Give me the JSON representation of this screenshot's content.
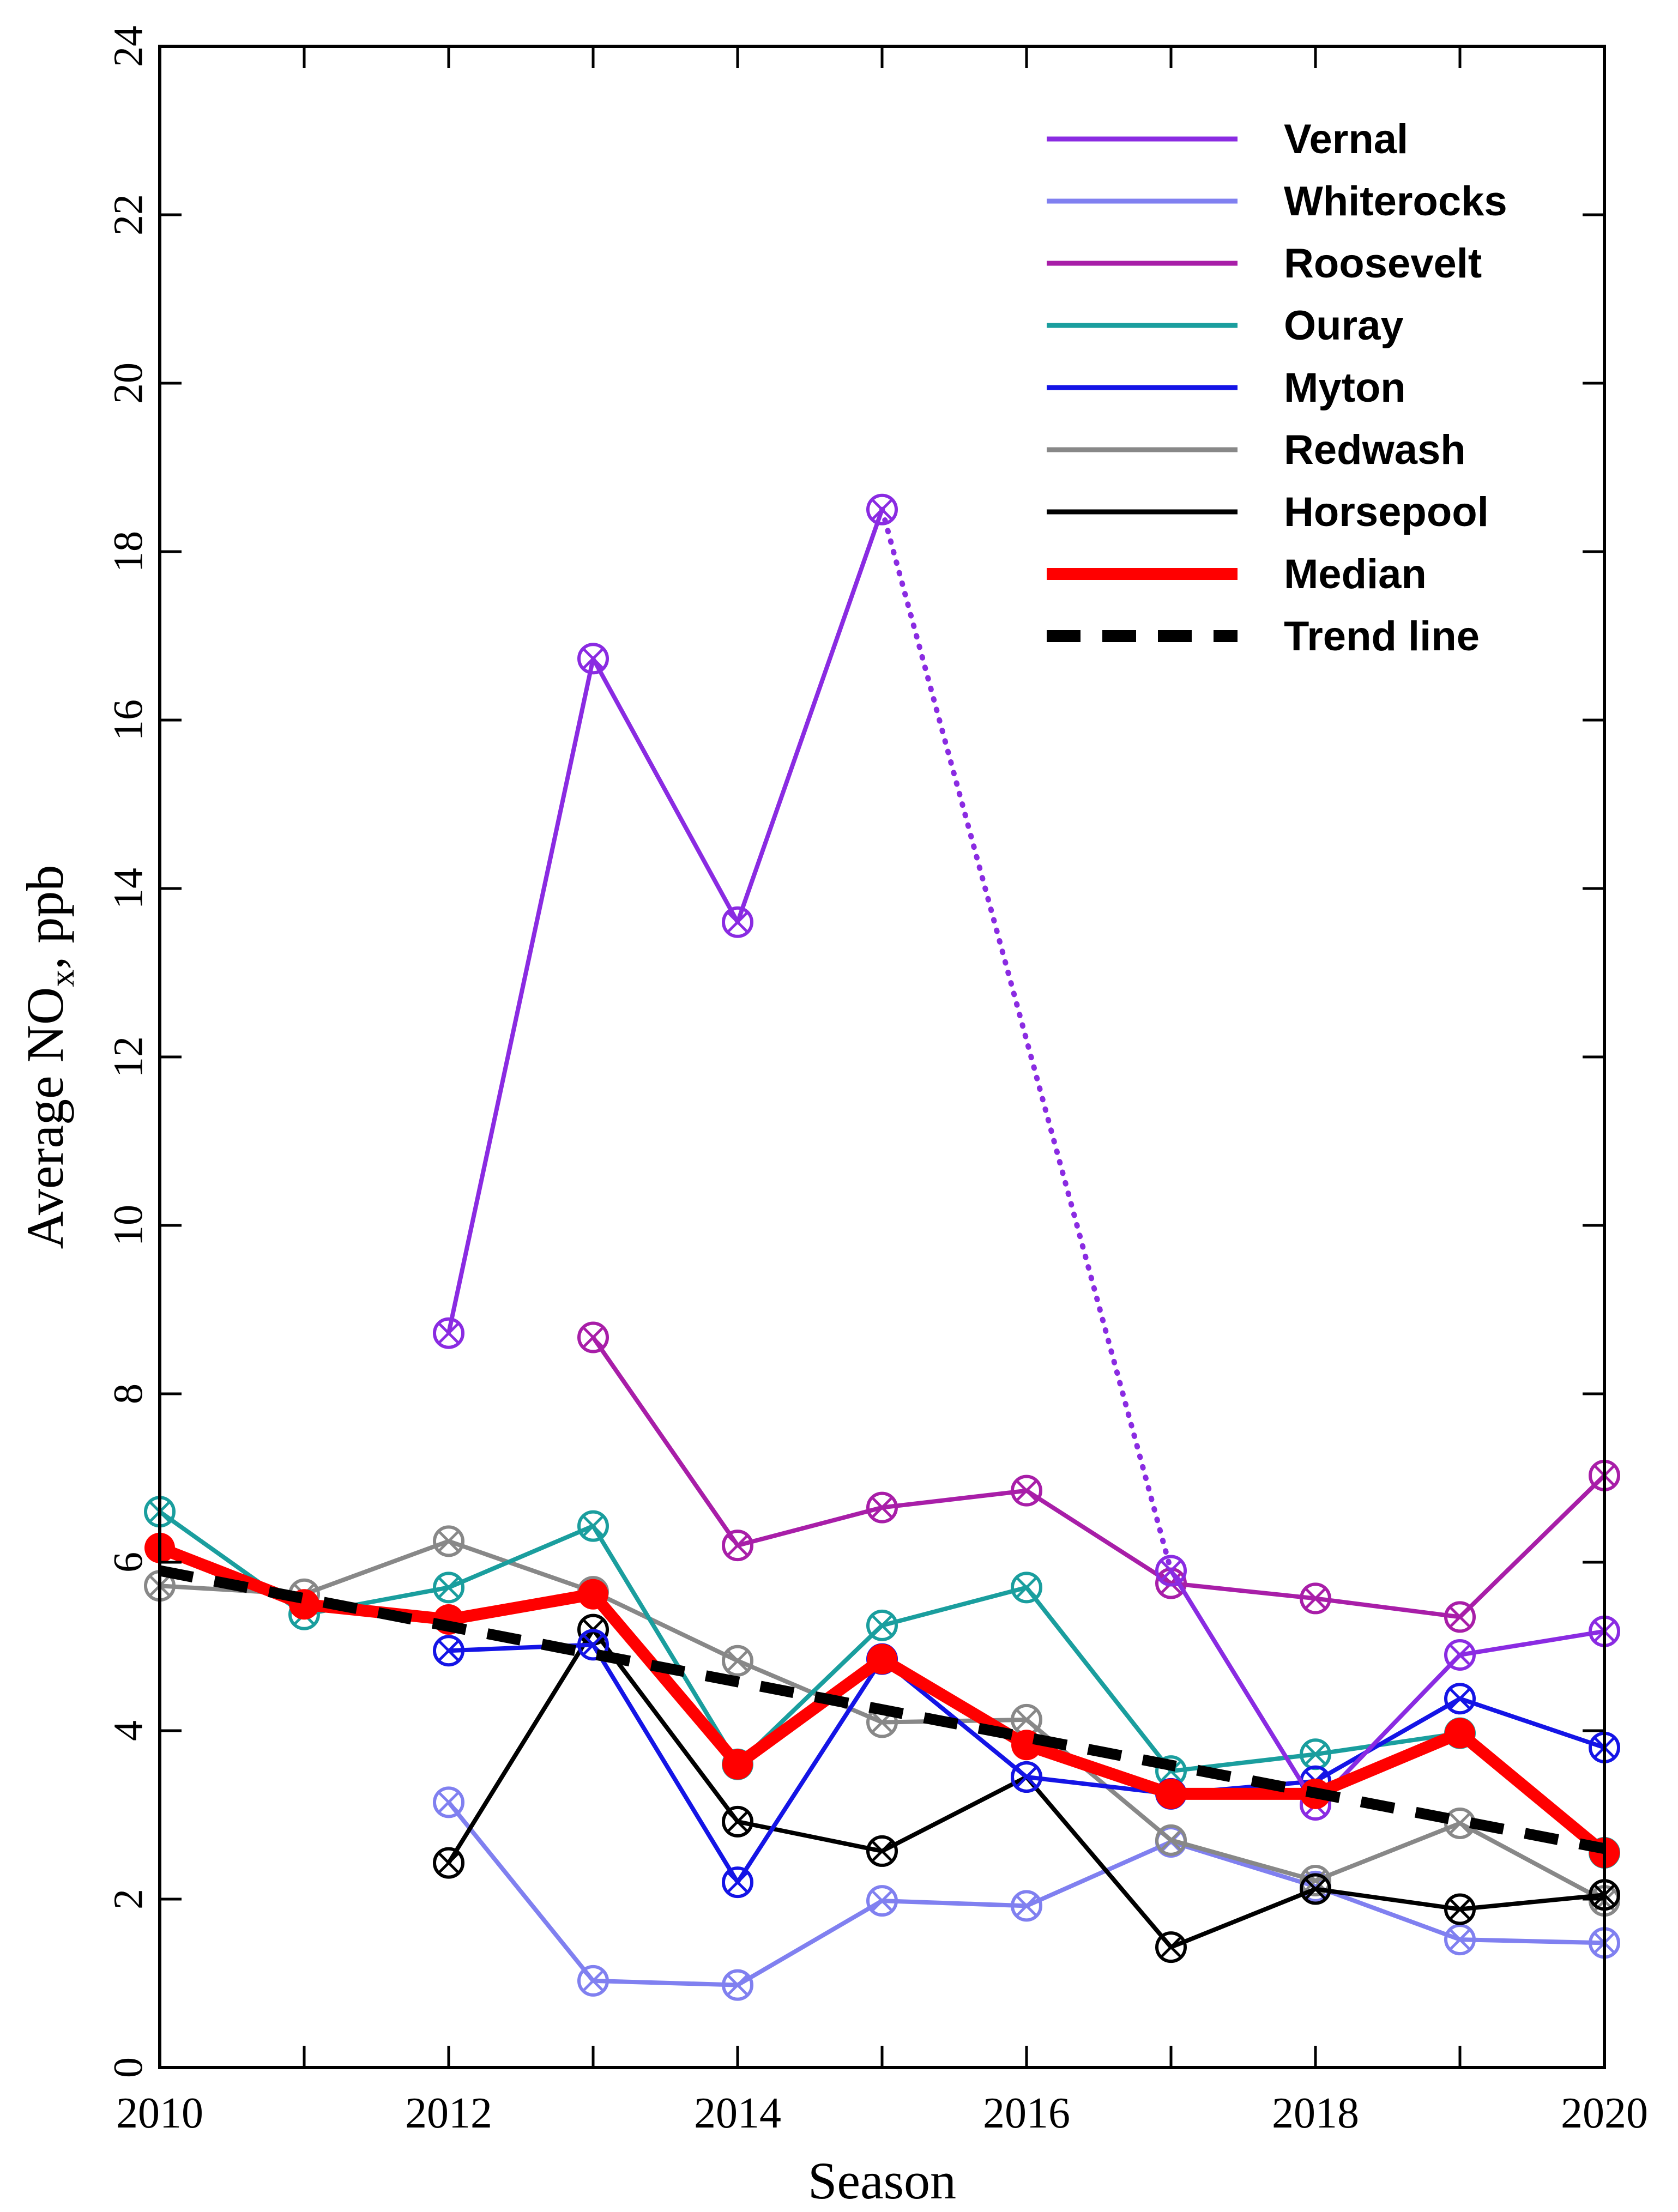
{
  "chart_data": {
    "type": "line",
    "xlabel": "Season",
    "ylabel": "Average NO",
    "ylabel_sub": "x",
    "ylabel_suffix": ", ppb",
    "xlim": [
      2010,
      2020
    ],
    "ylim": [
      0,
      24
    ],
    "x_ticks": [
      2010,
      2012,
      2014,
      2016,
      2018,
      2020
    ],
    "y_ticks": [
      0,
      2,
      4,
      6,
      8,
      10,
      12,
      14,
      16,
      18,
      20,
      22,
      24
    ],
    "legend_position": "top-right",
    "series": [
      {
        "name": "Vernal",
        "color": "#8a2be2",
        "points": [
          [
            2012,
            8.72
          ],
          [
            2013,
            16.73
          ],
          [
            2014,
            13.6
          ],
          [
            2015,
            18.5
          ],
          [
            2017,
            5.9
          ],
          [
            2018,
            3.12
          ],
          [
            2019,
            4.9
          ],
          [
            2020,
            5.18
          ]
        ],
        "dotted_segment": [
          2015,
          2017
        ]
      },
      {
        "name": "Whiterocks",
        "color": "#8080f0",
        "points": [
          [
            2012,
            3.15
          ],
          [
            2013,
            1.03
          ],
          [
            2014,
            0.98
          ],
          [
            2015,
            1.98
          ],
          [
            2016,
            1.92
          ],
          [
            2017,
            2.68
          ],
          [
            2018,
            2.15
          ],
          [
            2019,
            1.52
          ],
          [
            2020,
            1.48
          ]
        ]
      },
      {
        "name": "Roosevelt",
        "color": "#a81ea8",
        "points": [
          [
            2013,
            8.67
          ],
          [
            2014,
            6.2
          ],
          [
            2015,
            6.65
          ],
          [
            2016,
            6.85
          ],
          [
            2017,
            5.75
          ],
          [
            2018,
            5.57
          ],
          [
            2019,
            5.35
          ],
          [
            2020,
            7.03
          ]
        ]
      },
      {
        "name": "Ouray",
        "color": "#1a9e9e",
        "points": [
          [
            2010,
            6.6
          ],
          [
            2011,
            5.38
          ],
          [
            2012,
            5.7
          ],
          [
            2013,
            6.43
          ],
          [
            2014,
            3.6
          ],
          [
            2015,
            5.25
          ],
          [
            2016,
            5.7
          ],
          [
            2017,
            3.52
          ],
          [
            2018,
            3.72
          ],
          [
            2019,
            3.97
          ],
          [
            2020,
            2.55
          ]
        ]
      },
      {
        "name": "Myton",
        "color": "#1414e6",
        "points": [
          [
            2012,
            4.95
          ],
          [
            2013,
            5.02
          ],
          [
            2014,
            2.2
          ],
          [
            2015,
            4.85
          ],
          [
            2016,
            3.45
          ],
          [
            2017,
            3.25
          ],
          [
            2018,
            3.4
          ],
          [
            2019,
            4.38
          ],
          [
            2020,
            3.8
          ]
        ]
      },
      {
        "name": "Redwash",
        "color": "#888888",
        "points": [
          [
            2010,
            5.72
          ],
          [
            2011,
            5.62
          ],
          [
            2012,
            6.25
          ],
          [
            2013,
            5.65
          ],
          [
            2014,
            4.83
          ],
          [
            2015,
            4.1
          ],
          [
            2016,
            4.13
          ],
          [
            2017,
            2.7
          ],
          [
            2018,
            2.22
          ],
          [
            2019,
            2.9
          ],
          [
            2020,
            1.98
          ]
        ]
      },
      {
        "name": "Horsepool",
        "color": "#000000",
        "points": [
          [
            2012,
            2.43
          ],
          [
            2013,
            5.2
          ],
          [
            2014,
            2.92
          ],
          [
            2015,
            2.57
          ],
          [
            2016,
            3.45
          ],
          [
            2017,
            1.43
          ],
          [
            2018,
            2.12
          ],
          [
            2019,
            1.88
          ],
          [
            2020,
            2.05
          ]
        ]
      },
      {
        "name": "Median",
        "color": "#ff0000",
        "points": [
          [
            2010,
            6.17
          ],
          [
            2011,
            5.5
          ],
          [
            2012,
            5.32
          ],
          [
            2013,
            5.62
          ],
          [
            2014,
            3.6
          ],
          [
            2015,
            4.85
          ],
          [
            2016,
            3.83
          ],
          [
            2017,
            3.25
          ],
          [
            2018,
            3.25
          ],
          [
            2019,
            3.97
          ],
          [
            2020,
            2.55
          ]
        ]
      },
      {
        "name": "Trend line",
        "color": "#000000",
        "points": [
          [
            2010,
            5.9
          ],
          [
            2020,
            2.6
          ]
        ]
      }
    ]
  }
}
